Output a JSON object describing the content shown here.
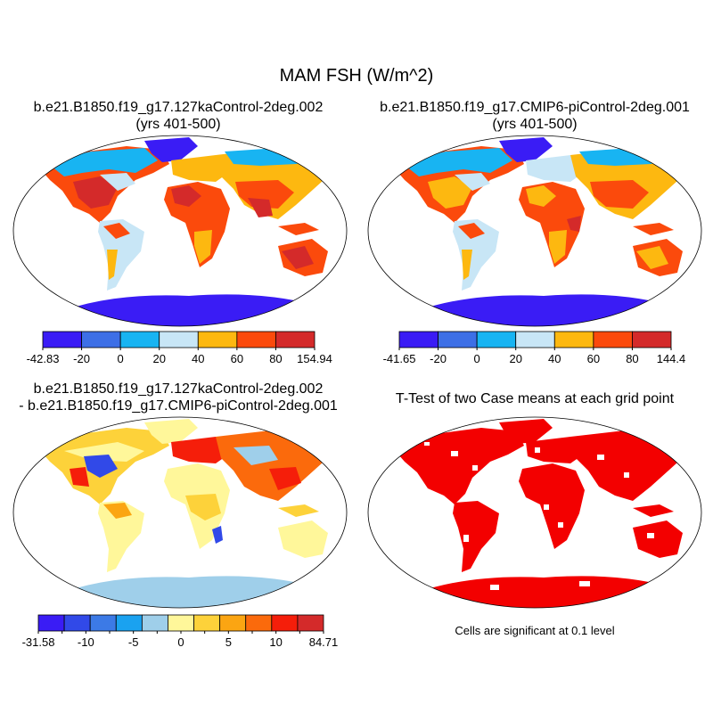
{
  "title": "MAM FSH (W/m^2)",
  "panels": [
    {
      "id": "case1",
      "title_line1": "b.e21.B1850.f19_g17.127kaControl-2deg.002",
      "title_line2": "(yrs 401-500)"
    },
    {
      "id": "case2",
      "title_line1": "b.e21.B1850.f19_g17.CMIP6-piControl-2deg.001",
      "title_line2": "(yrs 401-500)"
    },
    {
      "id": "diff",
      "title_line1": "b.e21.B1850.f19_g17.127kaControl-2deg.002",
      "title_line2": "- b.e21.B1850.f19_g17.CMIP6-piControl-2deg.001"
    },
    {
      "id": "ttest",
      "title_line1": "T-Test of two Case means at each grid point",
      "title_line2": ""
    }
  ],
  "colorbars": [
    {
      "ticks": [
        "-42.83",
        "-20",
        "0",
        "20",
        "40",
        "60",
        "80",
        "154.94"
      ],
      "colors": [
        "#3a1cf5",
        "#3d6fe6",
        "#18b4f2",
        "#c8e6f6",
        "#fdb810",
        "#fb4a0c",
        "#d42a2a"
      ]
    },
    {
      "ticks": [
        "-41.65",
        "-20",
        "0",
        "20",
        "40",
        "60",
        "80",
        "144.4"
      ],
      "colors": [
        "#3a1cf5",
        "#3d6fe6",
        "#18b4f2",
        "#c8e6f6",
        "#fdb810",
        "#fb4a0c",
        "#d42a2a"
      ]
    },
    {
      "ticks": [
        "-31.58",
        "",
        "-10",
        "",
        "-5",
        "",
        "0",
        "",
        "5",
        "",
        "10",
        "",
        "84.71"
      ],
      "colors": [
        "#3a1cf5",
        "#3149e8",
        "#3c7ae6",
        "#1aa2f0",
        "#9fcfea",
        "#fff79a",
        "#fdd23a",
        "#fba512",
        "#fb6a0c",
        "#f51e0a",
        "#d42a2a"
      ]
    }
  ],
  "significance_note": "Cells are significant at 0.1 level",
  "colors": {
    "ttest_fill": "#f30000",
    "coast": "#000000",
    "ocean": "#ffffff"
  }
}
